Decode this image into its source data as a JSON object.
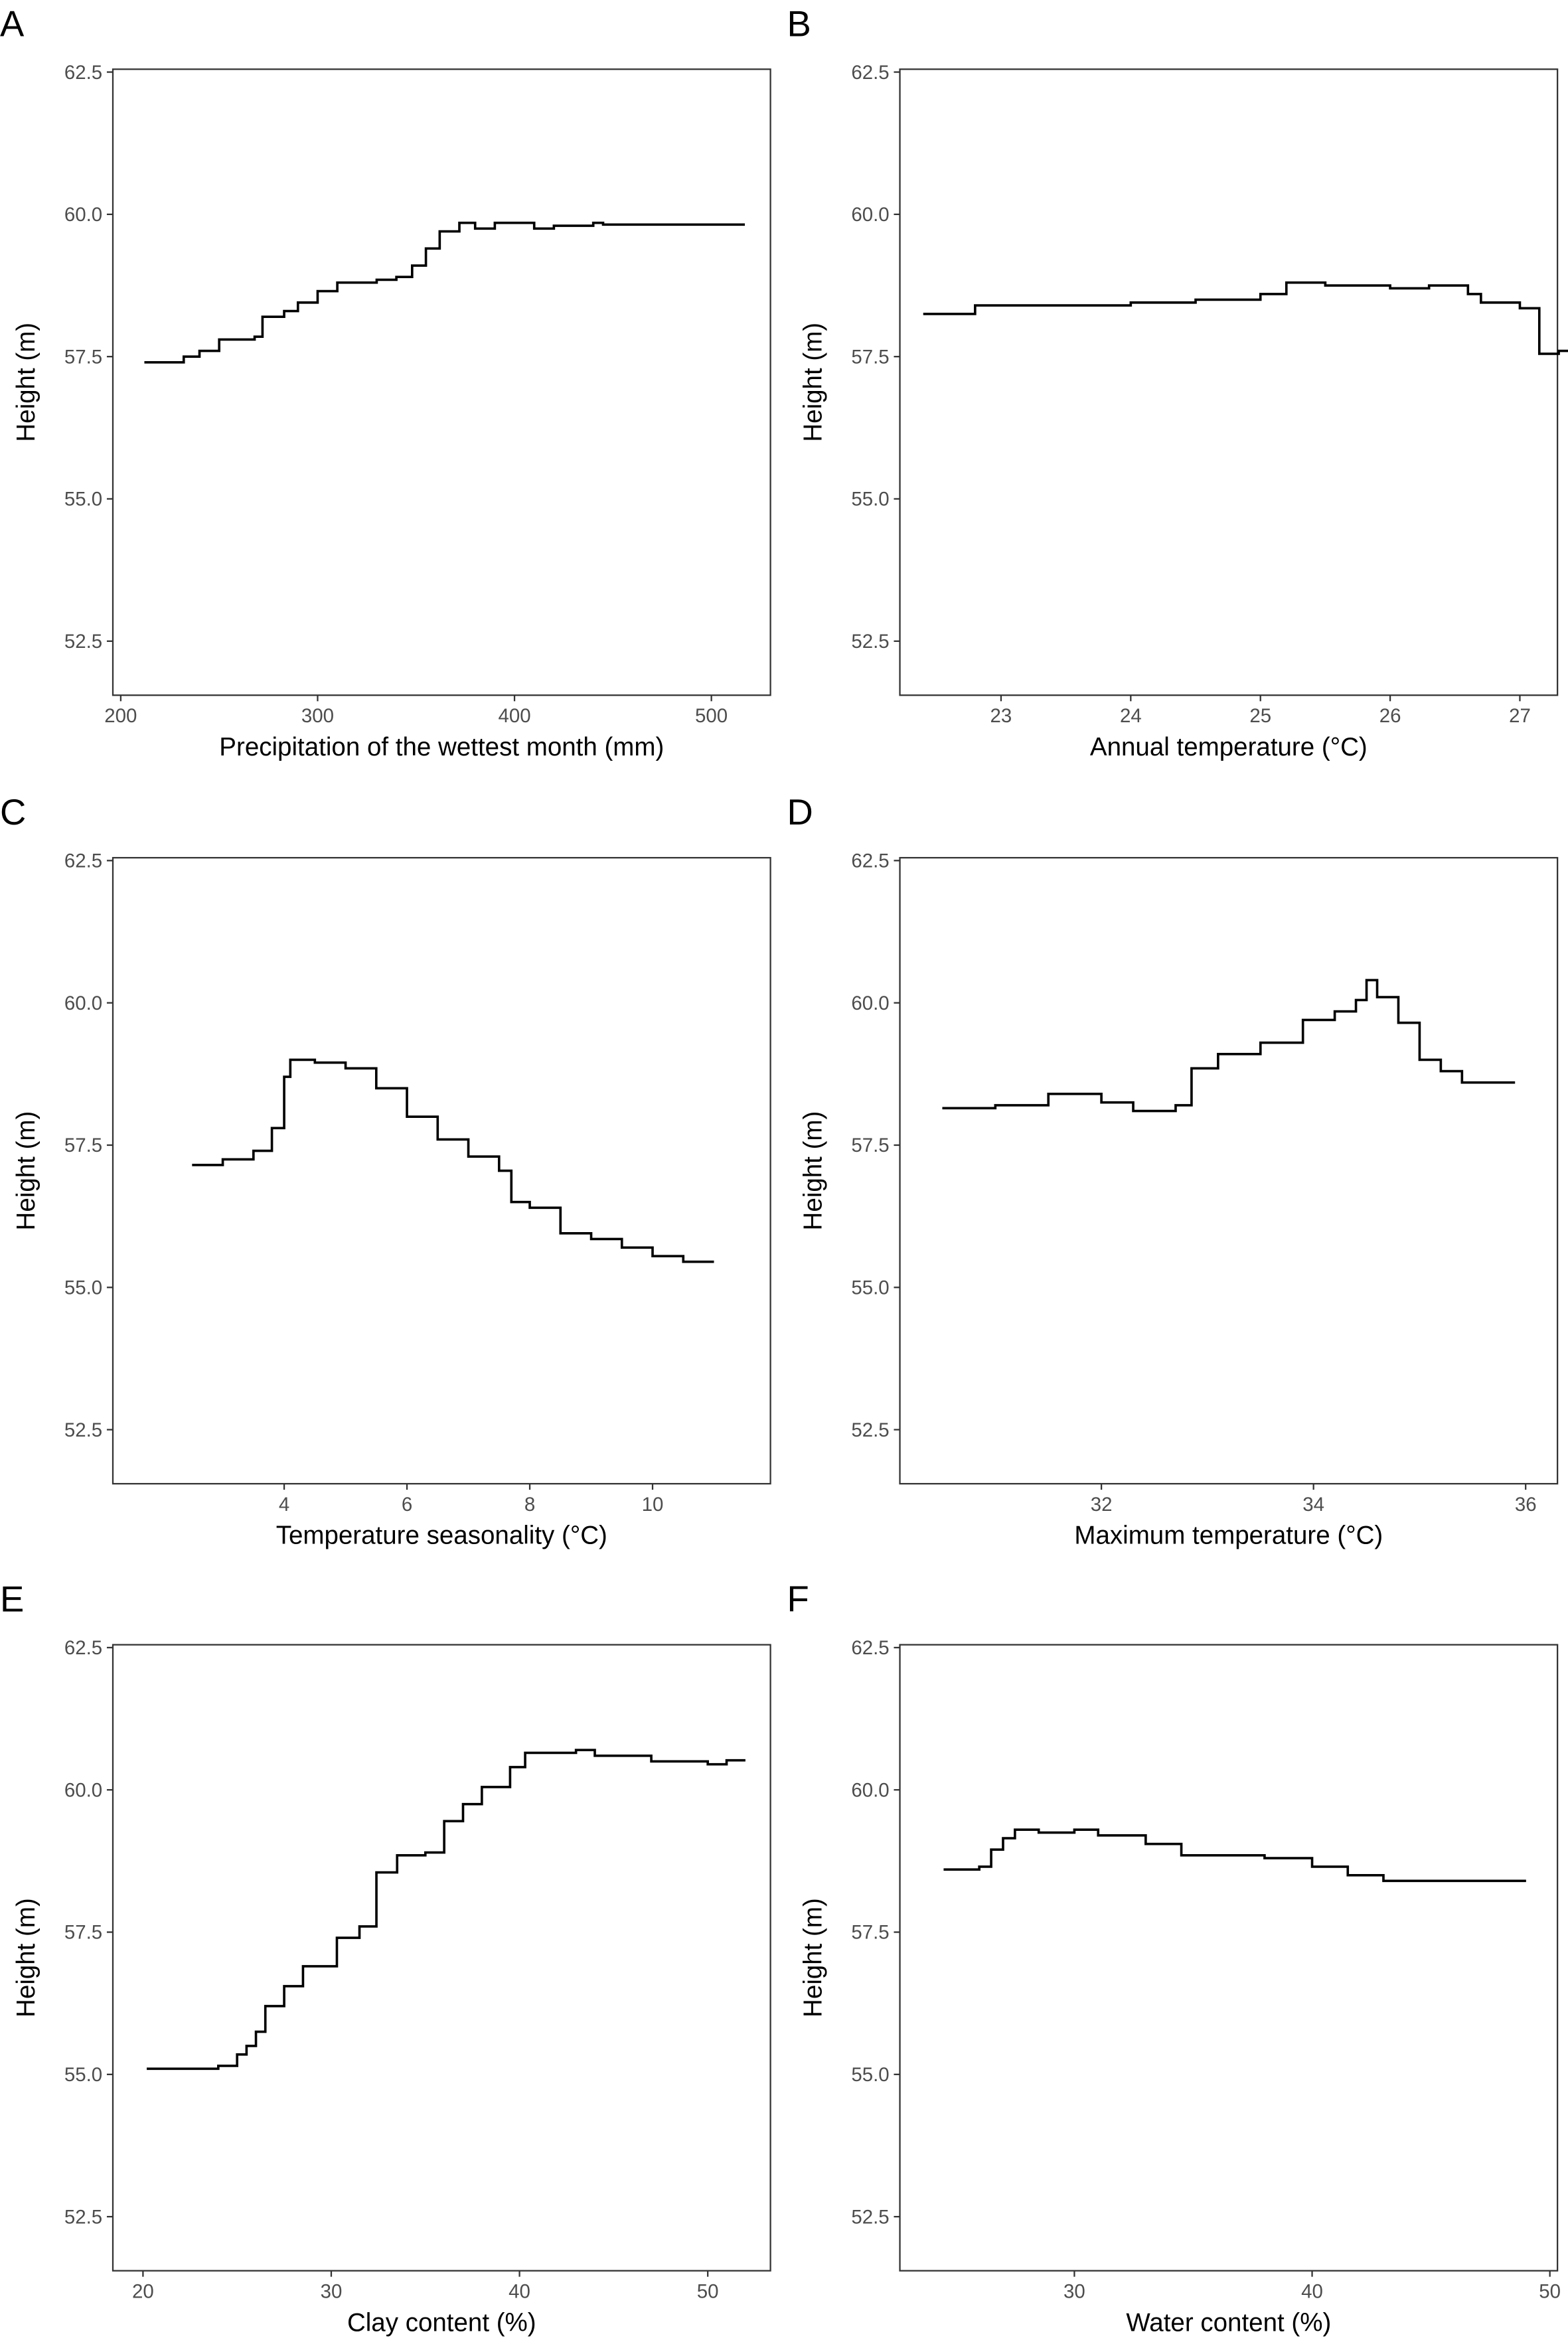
{
  "chart_data": [
    {
      "type": "line",
      "step": "post",
      "panel_label": "A",
      "x_label": "Precipitation of the wettest month (mm)",
      "y_label": "Height (m)",
      "color": "#000000",
      "x": [
        212,
        232,
        240,
        250,
        268,
        272,
        283,
        290,
        300,
        310,
        330,
        340,
        348,
        355,
        362,
        372,
        380,
        390,
        400,
        410,
        420,
        440,
        445,
        517
      ],
      "values": [
        57.4,
        57.5,
        57.6,
        57.8,
        57.85,
        58.2,
        58.3,
        58.45,
        58.65,
        58.8,
        58.85,
        58.9,
        59.1,
        59.4,
        59.7,
        59.85,
        59.75,
        59.85,
        59.85,
        59.75,
        59.8,
        59.85,
        59.82,
        59.82
      ],
      "xlim": [
        196,
        530
      ],
      "xticks": [
        200,
        300,
        400,
        500
      ],
      "ylim": [
        51.55,
        62.55
      ],
      "yticks": [
        52.5,
        {
          "value": 55,
          "label": "55.0"
        },
        57.5,
        {
          "value": 60,
          "label": "60.0"
        },
        62.5
      ]
    },
    {
      "type": "line",
      "step": "post",
      "panel_label": "B",
      "x_label": "Annual temperature (°C)",
      "y_label": "Height (m)",
      "color": "#000000",
      "x": [
        22.4,
        22.8,
        24,
        24.5,
        25,
        25.2,
        25.5,
        26,
        26.3,
        26.6,
        26.7,
        27.0,
        27.15,
        27.3,
        27.4
      ],
      "values": [
        58.25,
        58.4,
        58.45,
        58.5,
        58.6,
        58.8,
        58.75,
        58.7,
        58.75,
        58.6,
        58.45,
        58.35,
        57.55,
        57.6,
        57.65
      ],
      "xlim": [
        22.22,
        27.29
      ],
      "xticks": [
        23,
        24,
        25,
        26,
        27
      ],
      "ylim": [
        51.55,
        62.55
      ],
      "yticks": [
        52.5,
        {
          "value": 55,
          "label": "55.0"
        },
        57.5,
        {
          "value": 60,
          "label": "60.0"
        },
        62.5
      ]
    },
    {
      "type": "line",
      "step": "post",
      "panel_label": "C",
      "x_label": "Temperature seasonality (°C)",
      "y_label": "Height (m)",
      "color": "#000000",
      "x": [
        2.5,
        3,
        3.5,
        3.8,
        4.0,
        4.1,
        4.5,
        5,
        5.5,
        6,
        6.5,
        7,
        7.5,
        7.7,
        8,
        8.5,
        9,
        9.5,
        10,
        10.5,
        11
      ],
      "values": [
        57.15,
        57.25,
        57.4,
        57.8,
        58.7,
        59.0,
        58.95,
        58.85,
        58.5,
        58.0,
        57.6,
        57.3,
        57.05,
        56.5,
        56.4,
        55.95,
        55.85,
        55.7,
        55.55,
        55.45,
        55.45
      ],
      "xlim": [
        1.21,
        11.92
      ],
      "xticks": [
        4,
        6,
        8,
        10
      ],
      "ylim": [
        51.55,
        62.55
      ],
      "yticks": [
        52.5,
        {
          "value": 55,
          "label": "55.0"
        },
        57.5,
        {
          "value": 60,
          "label": "60.0"
        },
        62.5
      ]
    },
    {
      "type": "line",
      "step": "post",
      "panel_label": "D",
      "x_label": "Maximum temperature (°C)",
      "y_label": "Height (m)",
      "color": "#000000",
      "x": [
        30.5,
        31,
        31.5,
        31.8,
        32,
        32.3,
        32.7,
        32.85,
        33.1,
        33.5,
        33.9,
        34.2,
        34.4,
        34.5,
        34.6,
        34.8,
        35.0,
        35.2,
        35.4,
        35.9
      ],
      "values": [
        58.15,
        58.2,
        58.4,
        58.4,
        58.25,
        58.1,
        58.2,
        58.85,
        59.1,
        59.3,
        59.7,
        59.85,
        60.05,
        60.4,
        60.1,
        59.65,
        59.0,
        58.8,
        58.6,
        58.6
      ],
      "xlim": [
        30.1,
        36.3
      ],
      "xticks": [
        32,
        34,
        36
      ],
      "ylim": [
        51.55,
        62.55
      ],
      "yticks": [
        52.5,
        {
          "value": 55,
          "label": "55.0"
        },
        57.5,
        {
          "value": 60,
          "label": "60.0"
        },
        62.5
      ]
    },
    {
      "type": "line",
      "step": "post",
      "panel_label": "E",
      "x_label": "Clay content (%)",
      "y_label": "Height (m)",
      "color": "#000000",
      "x": [
        20.2,
        24,
        25,
        25.5,
        26,
        26.5,
        27.5,
        28.5,
        30.3,
        31.5,
        32.4,
        33.5,
        35,
        36,
        37,
        38,
        39.5,
        40.3,
        43,
        44,
        47,
        50,
        51,
        52
      ],
      "values": [
        55.1,
        55.15,
        55.35,
        55.5,
        55.75,
        56.2,
        56.55,
        56.9,
        57.4,
        57.6,
        58.55,
        58.85,
        58.9,
        59.45,
        59.75,
        60.05,
        60.4,
        60.65,
        60.7,
        60.6,
        60.5,
        60.45,
        60.52,
        60.52
      ],
      "xlim": [
        18.4,
        53.33
      ],
      "xticks": [
        20,
        30,
        40,
        50
      ],
      "ylim": [
        51.55,
        62.55
      ],
      "yticks": [
        52.5,
        {
          "value": 55,
          "label": "55.0"
        },
        57.5,
        {
          "value": 60,
          "label": "60.0"
        },
        62.5
      ]
    },
    {
      "type": "line",
      "step": "post",
      "panel_label": "F",
      "x_label": "Water content (%)",
      "y_label": "Height (m)",
      "color": "#000000",
      "x": [
        24.5,
        26,
        26.5,
        27,
        27.5,
        28.5,
        30,
        31,
        33,
        34.5,
        36,
        38,
        40,
        41.5,
        43,
        46,
        49
      ],
      "values": [
        58.6,
        58.65,
        58.95,
        59.15,
        59.3,
        59.25,
        59.3,
        59.2,
        59.05,
        58.85,
        58.85,
        58.8,
        58.65,
        58.5,
        58.4,
        58.4,
        58.4
      ],
      "xlim": [
        22.66,
        50.32
      ],
      "xticks": [
        30,
        40,
        50
      ],
      "ylim": [
        51.55,
        62.55
      ],
      "yticks": [
        52.5,
        {
          "value": 55,
          "label": "55.0"
        },
        57.5,
        {
          "value": 60,
          "label": "60.0"
        },
        62.5
      ]
    }
  ]
}
